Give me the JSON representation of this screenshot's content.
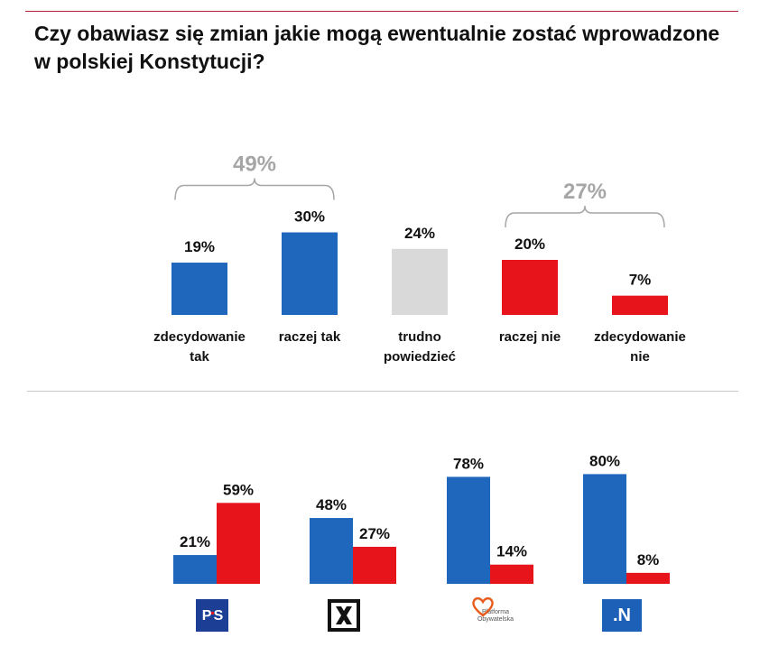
{
  "title": "Czy obawiasz się zmian jakie mogą ewentualnie zostać wprowadzone w polskiej Konstytucji?",
  "chart_data": [
    {
      "type": "bar",
      "categories": [
        "zdecydowanie tak",
        "raczej tak",
        "trudno powiedzieć",
        "raczej nie",
        "zdecydowanie nie"
      ],
      "category_lines": [
        [
          "zdecydowanie",
          "tak"
        ],
        [
          "raczej tak"
        ],
        [
          "trudno",
          "powiedzieć"
        ],
        [
          "raczej nie"
        ],
        [
          "zdecydowanie",
          "nie"
        ]
      ],
      "values": [
        19,
        30,
        24,
        20,
        7
      ],
      "value_labels": [
        "19%",
        "30%",
        "24%",
        "20%",
        "7%"
      ],
      "colors": [
        "#1f66bd",
        "#1f66bd",
        "#d9d9d9",
        "#e8141b",
        "#e8141b"
      ],
      "groups": [
        {
          "label": "49%",
          "value": 49,
          "from": 0,
          "to": 1
        },
        {
          "label": "27%",
          "value": 27,
          "from": 3,
          "to": 4
        }
      ],
      "grid": false
    },
    {
      "type": "bar",
      "categories": [
        "PiS",
        "Kukiz'15",
        "Platforma Obywatelska",
        "Nowoczesna"
      ],
      "series": [
        {
          "values": [
            21,
            48,
            78,
            80
          ],
          "labels": [
            "21%",
            "48%",
            "78%",
            "80%"
          ],
          "color": "#1f66bd"
        },
        {
          "values": [
            59,
            27,
            14,
            8
          ],
          "labels": [
            "59%",
            "27%",
            "14%",
            "8%"
          ],
          "color": "#e8141b"
        }
      ],
      "grid": false
    }
  ],
  "logos": {
    "pis": {
      "text_p": "P",
      "text_s": "S",
      "icon": "pis-logo"
    },
    "kukiz": {
      "icon": "kukiz-logo"
    },
    "po": {
      "line1": "Platforma",
      "line2": "Obywatelska",
      "icon": "po-logo"
    },
    "n": {
      "text": ".N",
      "icon": "nowoczesna-logo"
    }
  },
  "colors": {
    "blue": "#1f66bd",
    "red": "#e8141b",
    "grey": "#d9d9d9",
    "group_label": "#a6a6a6"
  }
}
